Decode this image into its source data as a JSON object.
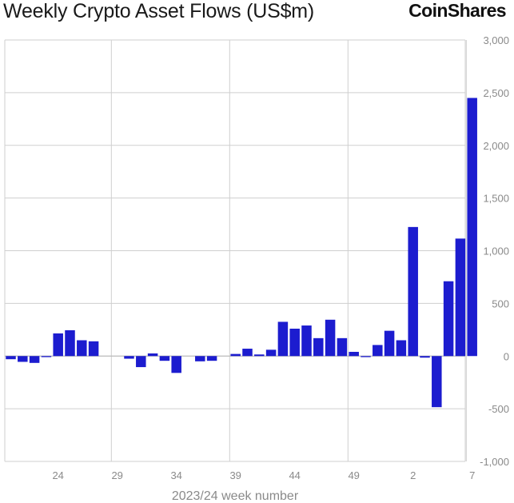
{
  "header": {
    "title": "Weekly Crypto Asset Flows (US$m)",
    "logo_text": "CoinShares"
  },
  "colors": {
    "bar": "#1c1ccf",
    "grid": "#cfcfcf",
    "tick_text": "#8a8a8a"
  },
  "chart_data": {
    "type": "bar",
    "title": "Weekly Crypto Asset Flows (US$m)",
    "xlabel": "2023/24 week number",
    "ylabel": "",
    "ylim": [
      -1000,
      3000
    ],
    "yticks": [
      -1000,
      -500,
      0,
      500,
      1000,
      1500,
      2000,
      2500,
      3000
    ],
    "ytick_labels": [
      "-1,000",
      "-500",
      "0",
      "500",
      "1,000",
      "1,500",
      "2,000",
      "2,500",
      "3,000"
    ],
    "x_tick_labels": [
      "24",
      "29",
      "34",
      "39",
      "44",
      "49",
      "2",
      "7"
    ],
    "categories": [
      "20",
      "21",
      "22",
      "23",
      "24",
      "25",
      "26",
      "27",
      "28",
      "29",
      "30",
      "31",
      "32",
      "33",
      "34",
      "35",
      "36",
      "37",
      "38",
      "39",
      "40",
      "41",
      "42",
      "43",
      "44",
      "45",
      "46",
      "47",
      "48",
      "49",
      "50",
      "51",
      "52",
      "1",
      "2",
      "3",
      "4",
      "5",
      "6",
      "7"
    ],
    "values": [
      -30,
      -55,
      -65,
      -10,
      215,
      245,
      150,
      140,
      0,
      0,
      -25,
      -105,
      25,
      -45,
      -160,
      0,
      -50,
      -45,
      0,
      20,
      70,
      15,
      60,
      325,
      260,
      290,
      170,
      345,
      170,
      40,
      -10,
      105,
      240,
      150,
      1225,
      -15,
      -485,
      710,
      1115,
      2450
    ],
    "grid": true
  }
}
